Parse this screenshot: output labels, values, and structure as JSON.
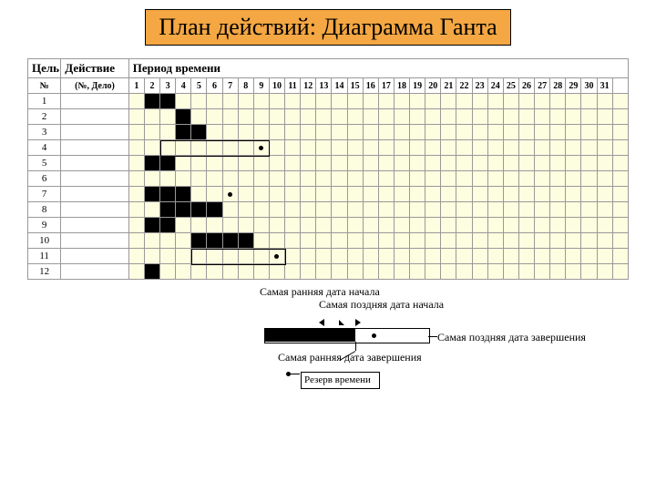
{
  "title": "План действий: Диаграмма Ганта",
  "headers": {
    "goal": "Цель",
    "action": "Действие",
    "period": "Период времени",
    "goal_sub": "№",
    "action_sub": "(№, Дело)"
  },
  "chart": {
    "type": "gantt",
    "background_color": "#fdfde0",
    "grid_color": "#999999",
    "bar_color": "#000000",
    "title_bg": "#f4a742",
    "num_rows": 12,
    "time_columns": 32,
    "time_labels": [
      "1",
      "2",
      "3",
      "4",
      "5",
      "6",
      "7",
      "8",
      "9",
      "10",
      "11",
      "12",
      "13",
      "14",
      "15",
      "16",
      "17",
      "18",
      "19",
      "20",
      "21",
      "22",
      "23",
      "24",
      "25",
      "26",
      "27",
      "28",
      "29",
      "30",
      "31",
      ""
    ],
    "bars": [
      [
        1,
        2
      ],
      [
        1,
        3
      ],
      [
        2,
        4
      ],
      [
        3,
        4
      ],
      [
        3,
        5
      ],
      [
        5,
        2
      ],
      [
        5,
        3
      ],
      [
        7,
        2
      ],
      [
        7,
        3
      ],
      [
        7,
        4
      ],
      [
        8,
        3
      ],
      [
        8,
        4
      ],
      [
        8,
        5
      ],
      [
        8,
        6
      ],
      [
        9,
        2
      ],
      [
        9,
        3
      ],
      [
        10,
        5
      ],
      [
        10,
        6
      ],
      [
        10,
        7
      ],
      [
        10,
        8
      ],
      [
        12,
        2
      ]
    ],
    "dots": [
      [
        4,
        9
      ],
      [
        7,
        7
      ],
      [
        11,
        10
      ]
    ],
    "outline_boxes": [
      {
        "row": 4,
        "start": 3,
        "end": 9,
        "height": 1
      },
      {
        "row": 11,
        "start": 5,
        "end": 10,
        "height": 1
      }
    ]
  },
  "legend": {
    "items": {
      "earliest_start": "Самая ранняя дата начала",
      "latest_start": "Самая поздняя дата начала",
      "latest_finish": "Самая поздняя дата завершения",
      "earliest_finish": "Самая ранняя дата завершения",
      "reserve": "Резерв времени"
    }
  }
}
